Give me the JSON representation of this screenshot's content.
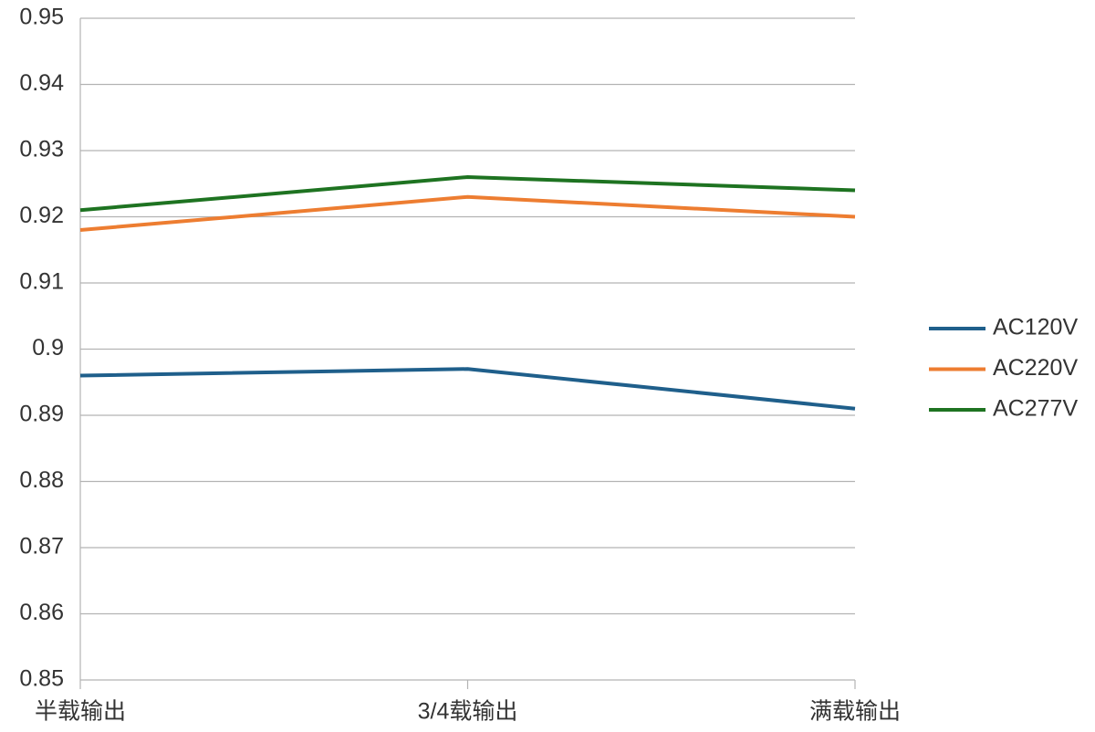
{
  "chart_data": {
    "type": "line",
    "categories": [
      "半载输出",
      "3/4载输出",
      "满载输出"
    ],
    "series": [
      {
        "name": "AC120V",
        "color": "#1f5f8b",
        "values": [
          0.896,
          0.897,
          0.891
        ]
      },
      {
        "name": "AC220V",
        "color": "#ed7d31",
        "values": [
          0.918,
          0.923,
          0.92
        ]
      },
      {
        "name": "AC277V",
        "color": "#1e7321",
        "values": [
          0.921,
          0.926,
          0.924
        ]
      }
    ],
    "ylim": [
      0.85,
      0.95
    ],
    "yticks": [
      0.85,
      0.86,
      0.87,
      0.88,
      0.89,
      0.9,
      0.91,
      0.92,
      0.93,
      0.94,
      0.95
    ],
    "grid": true,
    "legend": "right"
  }
}
